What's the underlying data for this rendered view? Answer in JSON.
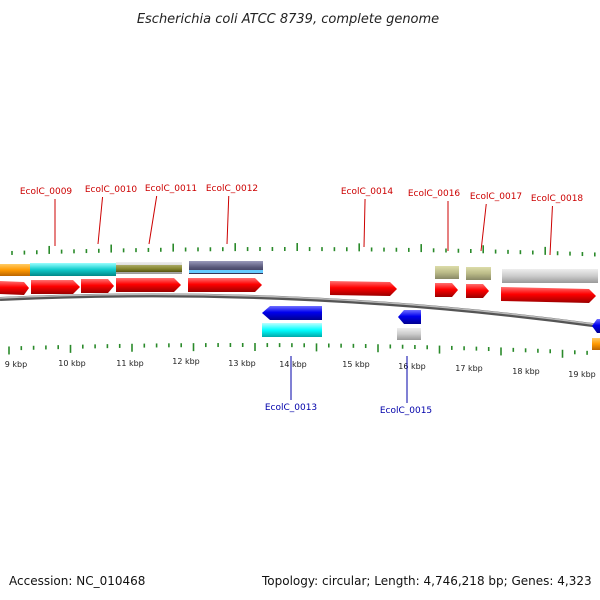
{
  "title": "Escherichia coli ATCC 8739, complete genome",
  "footer": {
    "accession": "Accession: NC_010468",
    "summary": "Topology: circular; Length: 4,746,218 bp; Genes: 4,323"
  },
  "colors": {
    "cds_forward": "#e00000",
    "cds_reverse": "#0000e0",
    "label_forward": "#cc0000",
    "label_reverse": "#0000aa",
    "tick": "#2a8a2a",
    "backbone": "#888888"
  },
  "kbp_ticks": [
    "9 kbp",
    "10 kbp",
    "11 kbp",
    "12 kbp",
    "13 kbp",
    "14 kbp",
    "15 kbp",
    "16 kbp",
    "17 kbp",
    "18 kbp",
    "19 kbp"
  ],
  "forward_genes": [
    "EcolC_0009",
    "EcolC_0010",
    "EcolC_0011",
    "EcolC_0012",
    "EcolC_0014",
    "EcolC_0016",
    "EcolC_0017",
    "EcolC_0018"
  ],
  "reverse_genes": [
    "EcolC_0013",
    "EcolC_0015"
  ]
}
